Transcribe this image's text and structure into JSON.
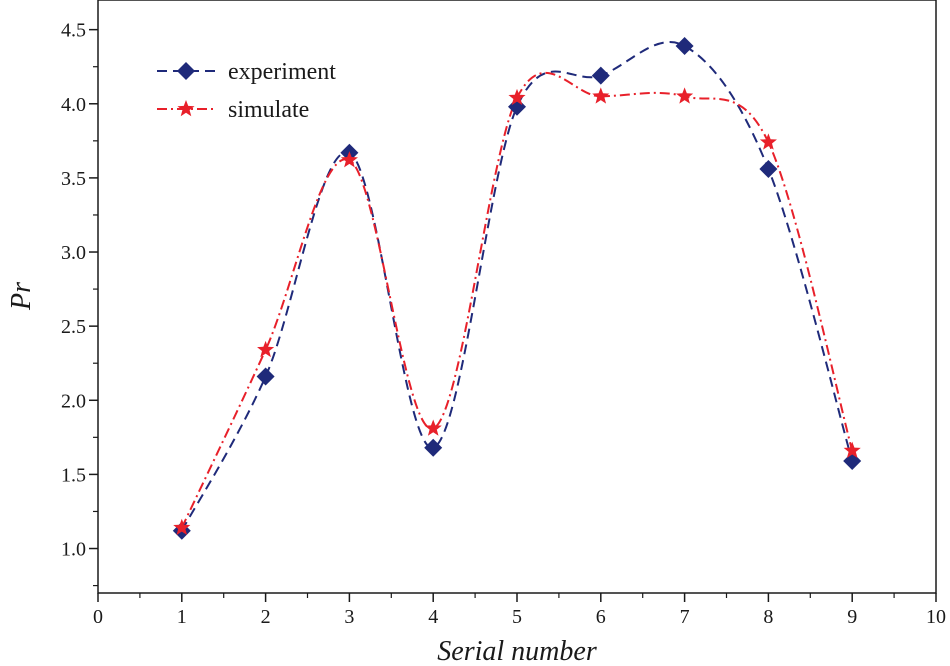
{
  "chart_data": {
    "type": "line",
    "xlabel": "Serial number",
    "ylabel": "Pr",
    "xlim": [
      0,
      10
    ],
    "ylim": [
      0.7,
      4.7
    ],
    "xticks": [
      0,
      1,
      2,
      3,
      4,
      5,
      6,
      7,
      8,
      9,
      10
    ],
    "xtick_labels": [
      "0",
      "1",
      "2",
      "3",
      "4",
      "5",
      "6",
      "7",
      "8",
      "9",
      "10"
    ],
    "yticks": [
      1.0,
      1.5,
      2.0,
      2.5,
      3.0,
      3.5,
      4.0,
      4.5
    ],
    "ytick_labels": [
      "1.0",
      "1.5",
      "2.0",
      "2.5",
      "3.0",
      "3.5",
      "4.0",
      "4.5"
    ],
    "grid": false,
    "legend_position": "top-left",
    "series": [
      {
        "name": "experiment",
        "color": "#1f2a7a",
        "marker": "diamond",
        "line_style": "dashed",
        "x": [
          1,
          2,
          3,
          4,
          5,
          6,
          7,
          8,
          9
        ],
        "values": [
          1.12,
          2.16,
          3.67,
          1.68,
          3.98,
          4.19,
          4.39,
          3.56,
          1.59
        ]
      },
      {
        "name": "simulate",
        "color": "#e8202a",
        "marker": "star",
        "line_style": "dash-dot",
        "x": [
          1,
          2,
          3,
          4,
          5,
          6,
          7,
          8,
          9
        ],
        "values": [
          1.14,
          2.34,
          3.62,
          1.81,
          4.04,
          4.05,
          4.05,
          3.74,
          1.66
        ]
      }
    ]
  }
}
